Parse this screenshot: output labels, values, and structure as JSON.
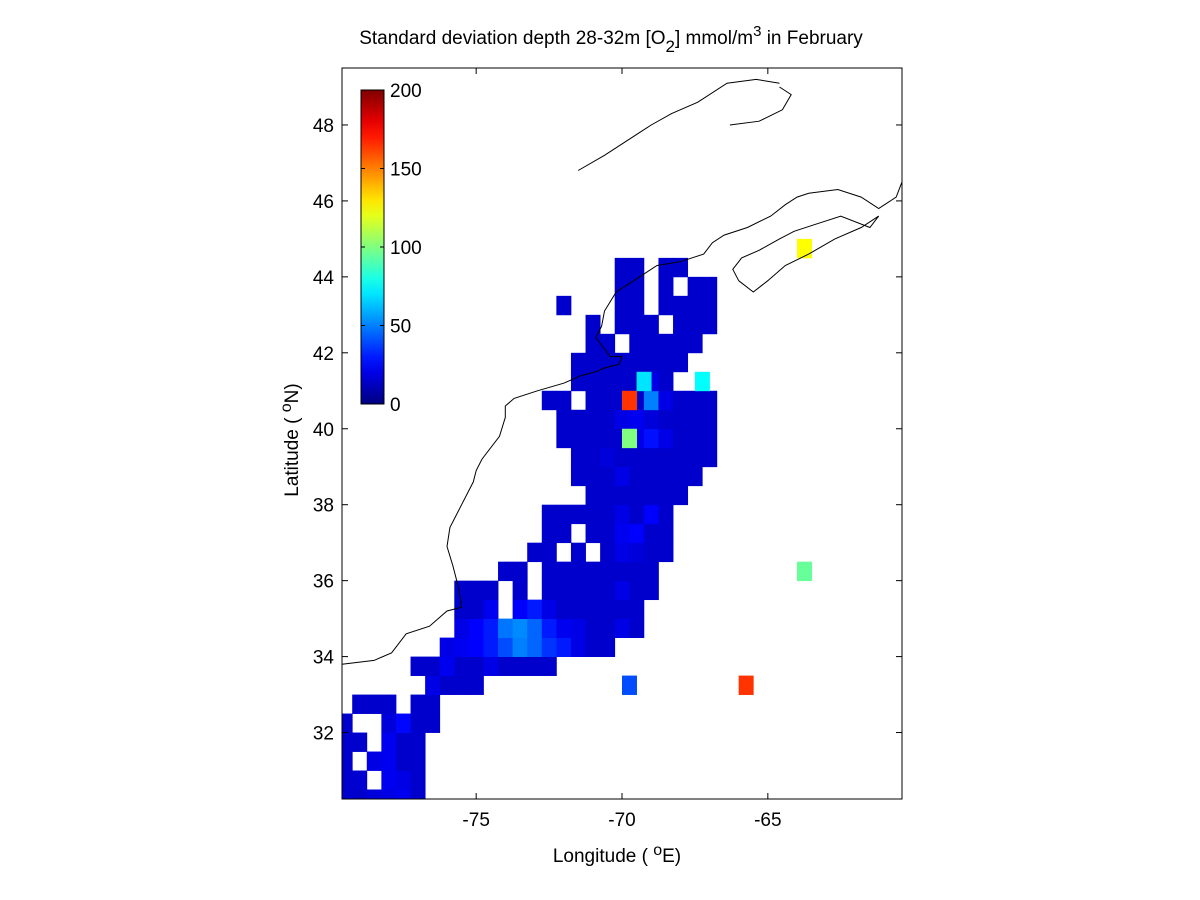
{
  "chart_data": {
    "type": "heatmap",
    "title": {
      "text": "Standard deviation depth 28-32m [O",
      "sub": "2",
      "mid": "] mmol/m",
      "sup": "3",
      "tail": " in February"
    },
    "xlabel": {
      "pre": "Longitude ( ",
      "sup": "o",
      "post": "E)"
    },
    "ylabel": {
      "pre": "Latitude ( ",
      "sup": "o",
      "post": "N)"
    },
    "xlim": [
      -79.6,
      -60.4
    ],
    "ylim": [
      30.25,
      49.5
    ],
    "xticks": [
      -75,
      -70,
      -65
    ],
    "yticks": [
      32,
      34,
      36,
      38,
      40,
      42,
      44,
      46,
      48
    ],
    "colorbar": {
      "colormap": "jet",
      "range": [
        0,
        200
      ],
      "ticks": [
        0,
        50,
        100,
        150,
        200
      ],
      "placement": "top-left"
    },
    "grid": false,
    "cell_size_deg": 0.5,
    "grid_origin": {
      "lon": -79.5,
      "lat": 30.25
    },
    "cells": [
      [
        0,
        0,
        15
      ],
      [
        0,
        1,
        15
      ],
      [
        0,
        2,
        18
      ],
      [
        0,
        3,
        20
      ],
      [
        0,
        4,
        22
      ],
      [
        0,
        5,
        15
      ],
      [
        1,
        1,
        16
      ],
      [
        1,
        3,
        22
      ],
      [
        1,
        4,
        20
      ],
      [
        1,
        5,
        15
      ],
      [
        1,
        0,
        15
      ],
      [
        2,
        0,
        15
      ],
      [
        2,
        2,
        20
      ],
      [
        2,
        3,
        22
      ],
      [
        2,
        4,
        15
      ],
      [
        2,
        5,
        15
      ],
      [
        3,
        3,
        22
      ],
      [
        3,
        4,
        15
      ],
      [
        3,
        5,
        15
      ],
      [
        3,
        1,
        15
      ],
      [
        3,
        0,
        15
      ],
      [
        4,
        0,
        15
      ],
      [
        4,
        3,
        18
      ],
      [
        4,
        4,
        26
      ],
      [
        4,
        5,
        15
      ],
      [
        4,
        6,
        15
      ],
      [
        5,
        5,
        15
      ],
      [
        5,
        6,
        15
      ],
      [
        5,
        1,
        15
      ],
      [
        5,
        2,
        15
      ],
      [
        5,
        3,
        15
      ],
      [
        6,
        6,
        20
      ],
      [
        6,
        7,
        15
      ],
      [
        6,
        8,
        15
      ],
      [
        6,
        9,
        15
      ],
      [
        7,
        5,
        15
      ],
      [
        7,
        6,
        15
      ],
      [
        7,
        7,
        22
      ],
      [
        7,
        8,
        15
      ],
      [
        7,
        9,
        15
      ],
      [
        7,
        10,
        20
      ],
      [
        7,
        11,
        15
      ],
      [
        7,
        12,
        15
      ],
      [
        7,
        13,
        15
      ],
      [
        7,
        14,
        15
      ],
      [
        8,
        7,
        20
      ],
      [
        8,
        8,
        22
      ],
      [
        8,
        9,
        25
      ],
      [
        8,
        10,
        30
      ],
      [
        8,
        11,
        40
      ],
      [
        8,
        12,
        50
      ],
      [
        8,
        13,
        45
      ],
      [
        8,
        14,
        35
      ],
      [
        8,
        15,
        30
      ],
      [
        8,
        16,
        20
      ],
      [
        8,
        17,
        15
      ],
      [
        8,
        18,
        15
      ],
      [
        9,
        8,
        20
      ],
      [
        9,
        9,
        25
      ],
      [
        9,
        10,
        30
      ],
      [
        9,
        11,
        48
      ],
      [
        9,
        12,
        52
      ],
      [
        9,
        13,
        45
      ],
      [
        9,
        14,
        30
      ],
      [
        9,
        15,
        22
      ],
      [
        9,
        16,
        20
      ],
      [
        9,
        17,
        15
      ],
      [
        9,
        18,
        15
      ],
      [
        9,
        19,
        20
      ],
      [
        9,
        20,
        15
      ],
      [
        10,
        8,
        15
      ],
      [
        10,
        9,
        15
      ],
      [
        10,
        10,
        22
      ],
      [
        10,
        12,
        25
      ],
      [
        10,
        13,
        30
      ],
      [
        10,
        14,
        20
      ],
      [
        10,
        15,
        15
      ],
      [
        10,
        16,
        15
      ],
      [
        10,
        17,
        15
      ],
      [
        10,
        18,
        15
      ],
      [
        10,
        19,
        15
      ],
      [
        10,
        20,
        15
      ],
      [
        11,
        8,
        15
      ],
      [
        11,
        9,
        15
      ],
      [
        11,
        10,
        15
      ],
      [
        11,
        12,
        15
      ],
      [
        11,
        14,
        15
      ],
      [
        11,
        15,
        15
      ],
      [
        11,
        16,
        15
      ],
      [
        11,
        17,
        15
      ],
      [
        11,
        18,
        15
      ],
      [
        11,
        19,
        20
      ],
      [
        11,
        20,
        15
      ],
      [
        11,
        21,
        15
      ],
      [
        12,
        11,
        15
      ],
      [
        12,
        12,
        15
      ],
      [
        12,
        14,
        15
      ],
      [
        12,
        15,
        15
      ],
      [
        12,
        16,
        15
      ],
      [
        12,
        17,
        15
      ],
      [
        12,
        18,
        15
      ],
      [
        12,
        19,
        15
      ],
      [
        12,
        20,
        15
      ],
      [
        12,
        21,
        15
      ],
      [
        13,
        13,
        15
      ],
      [
        13,
        14,
        15
      ],
      [
        13,
        16,
        15
      ],
      [
        13,
        18,
        15
      ],
      [
        13,
        19,
        20
      ],
      [
        13,
        20,
        18
      ],
      [
        13,
        21,
        15
      ],
      [
        13,
        22,
        15
      ],
      [
        14,
        14,
        15
      ],
      [
        14,
        15,
        15
      ],
      [
        14,
        17,
        15
      ],
      [
        14,
        18,
        15
      ],
      [
        14,
        19,
        22
      ],
      [
        14,
        20,
        25
      ],
      [
        14,
        21,
        15
      ],
      [
        14,
        22,
        15
      ],
      [
        15,
        14,
        15
      ],
      [
        15,
        15,
        15
      ],
      [
        15,
        16,
        15
      ],
      [
        15,
        17,
        15
      ],
      [
        15,
        18,
        15
      ],
      [
        15,
        19,
        20
      ],
      [
        15,
        20,
        15
      ],
      [
        15,
        21,
        25
      ],
      [
        15,
        22,
        15
      ],
      [
        16,
        17,
        15
      ],
      [
        16,
        18,
        15
      ],
      [
        16,
        19,
        15
      ],
      [
        16,
        20,
        15
      ],
      [
        16,
        21,
        15
      ],
      [
        16,
        22,
        15
      ],
      [
        16,
        23,
        15
      ],
      [
        17,
        16,
        15
      ],
      [
        17,
        17,
        15
      ],
      [
        17,
        18,
        15
      ],
      [
        17,
        19,
        20
      ],
      [
        17,
        20,
        15
      ],
      [
        17,
        21,
        15
      ],
      [
        17,
        22,
        15
      ],
      [
        17,
        23,
        15
      ],
      [
        17,
        24,
        15
      ],
      [
        18,
        16,
        15
      ],
      [
        18,
        17,
        15
      ],
      [
        18,
        18,
        18
      ],
      [
        18,
        19,
        15
      ],
      [
        18,
        20,
        15
      ],
      [
        18,
        21,
        15
      ],
      [
        18,
        22,
        15
      ],
      [
        18,
        23,
        15
      ],
      [
        18,
        24,
        15
      ],
      [
        18,
        25,
        15
      ],
      [
        19,
        15,
        15
      ],
      [
        19,
        16,
        15
      ],
      [
        19,
        17,
        15
      ],
      [
        19,
        18,
        15
      ],
      [
        19,
        19,
        15
      ],
      [
        19,
        20,
        20
      ],
      [
        19,
        21,
        28
      ],
      [
        19,
        22,
        20
      ],
      [
        19,
        23,
        15
      ],
      [
        19,
        24,
        15
      ],
      [
        19,
        25,
        15
      ],
      [
        20,
        15,
        15
      ],
      [
        20,
        16,
        15
      ],
      [
        20,
        17,
        15
      ],
      [
        20,
        18,
        15
      ],
      [
        20,
        19,
        20
      ],
      [
        20,
        20,
        22
      ],
      [
        20,
        21,
        18
      ],
      [
        20,
        22,
        15
      ],
      [
        20,
        23,
        15
      ],
      [
        20,
        24,
        15
      ],
      [
        20,
        25,
        15
      ],
      [
        21,
        14,
        15
      ],
      [
        21,
        15,
        15
      ],
      [
        21,
        17,
        15
      ],
      [
        21,
        18,
        15
      ],
      [
        21,
        19,
        15
      ],
      [
        21,
        20,
        15
      ],
      [
        21,
        21,
        50
      ],
      [
        21,
        22,
        20
      ],
      [
        21,
        23,
        15
      ],
      [
        21,
        24,
        15
      ],
      [
        21,
        25,
        15
      ],
      [
        22,
        16,
        15
      ],
      [
        22,
        17,
        15
      ],
      [
        22,
        18,
        15
      ],
      [
        22,
        19,
        15
      ],
      [
        22,
        20,
        15
      ],
      [
        22,
        21,
        20
      ],
      [
        22,
        22,
        15
      ],
      [
        23,
        16,
        15
      ],
      [
        23,
        17,
        15
      ],
      [
        23,
        18,
        15
      ],
      [
        23,
        19,
        15
      ],
      [
        23,
        20,
        15
      ],
      [
        23,
        21,
        15
      ],
      [
        23,
        22,
        15
      ],
      [
        23,
        23,
        15
      ],
      [
        24,
        17,
        15
      ],
      [
        24,
        18,
        15
      ],
      [
        24,
        20,
        15
      ],
      [
        24,
        21,
        15
      ],
      [
        24,
        22,
        15
      ],
      [
        24,
        23,
        15
      ],
      [
        24,
        24,
        15
      ],
      [
        25,
        17,
        15
      ],
      [
        25,
        19,
        15
      ],
      [
        25,
        20,
        15
      ],
      [
        25,
        21,
        15
      ],
      [
        25,
        23,
        15
      ],
      [
        25,
        24,
        15
      ],
      [
        25,
        25,
        15
      ],
      [
        26,
        15,
        15
      ],
      [
        26,
        19,
        15
      ],
      [
        26,
        20,
        15
      ],
      [
        26,
        22,
        15
      ],
      [
        26,
        23,
        15
      ],
      [
        26,
        24,
        15
      ],
      [
        26,
        25,
        15
      ],
      [
        27,
        19,
        15
      ],
      [
        27,
        20,
        15
      ],
      [
        27,
        22,
        15
      ],
      [
        27,
        24,
        15
      ],
      [
        27,
        25,
        15
      ],
      [
        28,
        19,
        15
      ],
      [
        28,
        20,
        15
      ],
      [
        28,
        22,
        15
      ],
      [
        28,
        23,
        15
      ]
    ],
    "highlights": [
      {
        "lon": -69.75,
        "lat": 40.75,
        "value": 165
      },
      {
        "lon": -69.75,
        "lat": 39.75,
        "value": 100
      },
      {
        "lon": -69.25,
        "lat": 41.25,
        "value": 70
      },
      {
        "lon": -67.25,
        "lat": 41.25,
        "value": 75
      },
      {
        "lon": -65.75,
        "lat": 33.25,
        "value": 165
      },
      {
        "lon": -63.75,
        "lat": 36.25,
        "value": 95
      },
      {
        "lon": -63.75,
        "lat": 44.75,
        "value": 125
      },
      {
        "lon": -69.75,
        "lat": 33.25,
        "value": 40
      }
    ]
  }
}
